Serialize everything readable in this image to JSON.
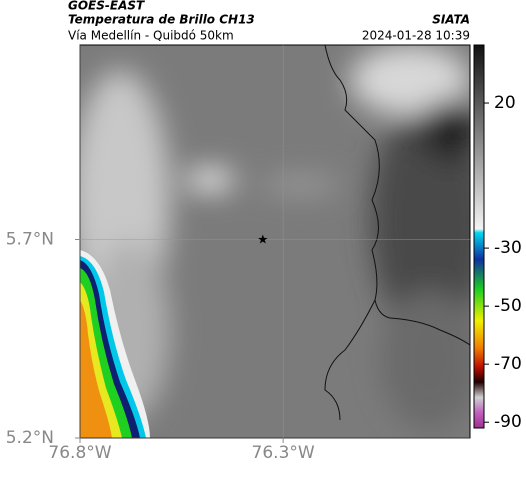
{
  "header": {
    "source": "GOES-EAST",
    "title": "Temperatura de Brillo CH13",
    "org": "SIATA",
    "subtitle": "Vía Medellín - Quibdó 50km",
    "timestamp": "2024-01-28 10:39"
  },
  "map": {
    "lonlim": [
      -76.8,
      -75.84
    ],
    "latlim": [
      5.2,
      6.19
    ],
    "lon_ticks": [
      {
        "value": -76.8,
        "label": "76.8°W"
      },
      {
        "value": -76.3,
        "label": "76.3°W"
      }
    ],
    "lat_ticks": [
      {
        "value": 5.7,
        "label": "5.7°N"
      },
      {
        "value": 5.2,
        "label": "5.2°N"
      }
    ],
    "marker": {
      "lon": -76.35,
      "lat": 5.7
    },
    "colorbar": {
      "lim": [
        -92,
        40
      ],
      "ticks": [
        20,
        -30,
        -50,
        -70,
        -90
      ]
    }
  }
}
